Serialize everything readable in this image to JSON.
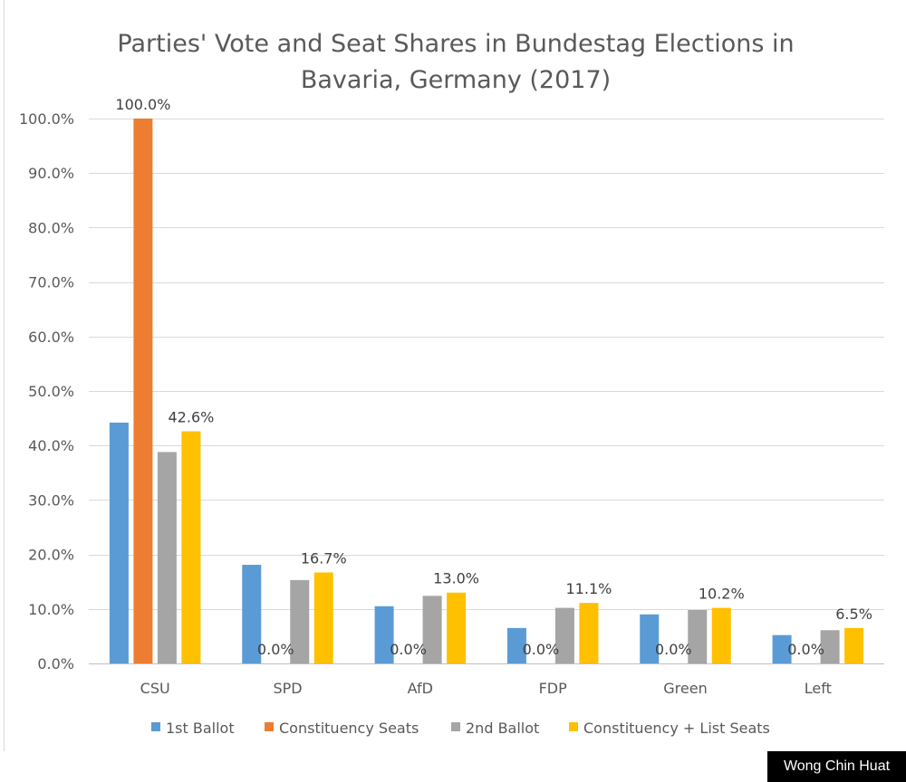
{
  "chart_data": {
    "type": "bar",
    "title_lines": [
      "Parties' Vote and Seat Shares in Bundestag Elections in",
      "Bavaria, Germany (2017)"
    ],
    "categories": [
      "CSU",
      "SPD",
      "AfD",
      "FDP",
      "Green",
      "Left"
    ],
    "series": [
      {
        "name": "1st Ballot",
        "color": "#5B9BD5",
        "values": [
          44.2,
          18.1,
          10.5,
          6.5,
          9.0,
          5.2
        ],
        "labels": [
          "",
          "",
          "",
          "",
          "",
          ""
        ]
      },
      {
        "name": "Constituency Seats",
        "color": "#ED7D31",
        "values": [
          100.0,
          0.0,
          0.0,
          0.0,
          0.0,
          0.0
        ],
        "labels": [
          "100.0%",
          "0.0%",
          "0.0%",
          "0.0%",
          "0.0%",
          "0.0%"
        ]
      },
      {
        "name": "2nd Ballot",
        "color": "#A5A5A5",
        "values": [
          38.8,
          15.3,
          12.4,
          10.2,
          9.8,
          6.1
        ],
        "labels": [
          "",
          "",
          "",
          "",
          "",
          ""
        ]
      },
      {
        "name": "Constituency + List Seats",
        "color": "#FFC000",
        "values": [
          42.6,
          16.7,
          13.0,
          11.1,
          10.2,
          6.5
        ],
        "labels": [
          "42.6%",
          "16.7%",
          "13.0%",
          "11.1%",
          "10.2%",
          "6.5%"
        ]
      }
    ],
    "ylim": [
      0,
      100
    ],
    "yticks": [
      0,
      10,
      20,
      30,
      40,
      50,
      60,
      70,
      80,
      90,
      100
    ],
    "ytick_labels": [
      "0.0%",
      "10.0%",
      "20.0%",
      "30.0%",
      "40.0%",
      "50.0%",
      "60.0%",
      "70.0%",
      "80.0%",
      "90.0%",
      "100.0%"
    ],
    "grid": true,
    "legend_position": "bottom"
  },
  "credit": "Wong Chin Huat"
}
